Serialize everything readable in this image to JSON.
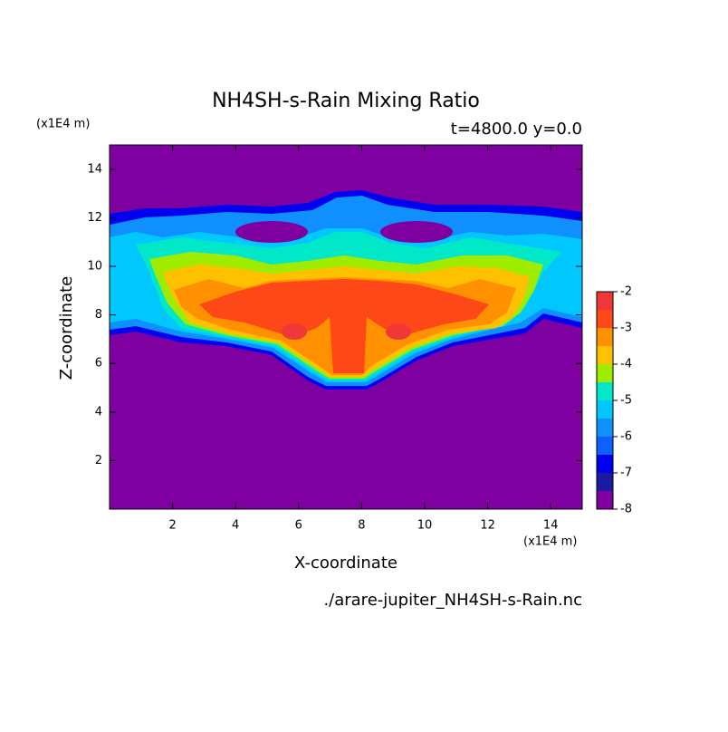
{
  "chart_data": {
    "type": "contour",
    "title": "NH4SH-s-Rain Mixing Ratio",
    "subtitle": "t=4800.0 y=0.0",
    "x_label": "X-coordinate",
    "y_label": "Z-coordinate",
    "x_unit_label": "(x1E4 m)",
    "y_unit_label": "(x1E4 m)",
    "footer": "./arare-jupiter_NH4SH-s-Rain.nc",
    "xlim": [
      0,
      15
    ],
    "ylim": [
      0,
      15
    ],
    "xticks": [
      2,
      4,
      6,
      8,
      10,
      12,
      14
    ],
    "yticks": [
      2,
      4,
      6,
      8,
      10,
      12,
      14
    ],
    "levels": [
      -8,
      -7.5,
      -7,
      -6.5,
      -6,
      -5.5,
      -5,
      -4.5,
      -4,
      -3.5,
      -3,
      -2.5,
      -2
    ],
    "colors": [
      "#7e00a0",
      "#1a1aa0",
      "#0000f0",
      "#1060ff",
      "#1090ff",
      "#00c8ff",
      "#00e8c8",
      "#a0ec00",
      "#ffc000",
      "#ff9000",
      "#ff4818",
      "#f03838",
      "#ffa8a8"
    ],
    "colorbar_ticks": [
      -8,
      -7,
      -6,
      -5,
      -4,
      -3,
      -2
    ]
  }
}
